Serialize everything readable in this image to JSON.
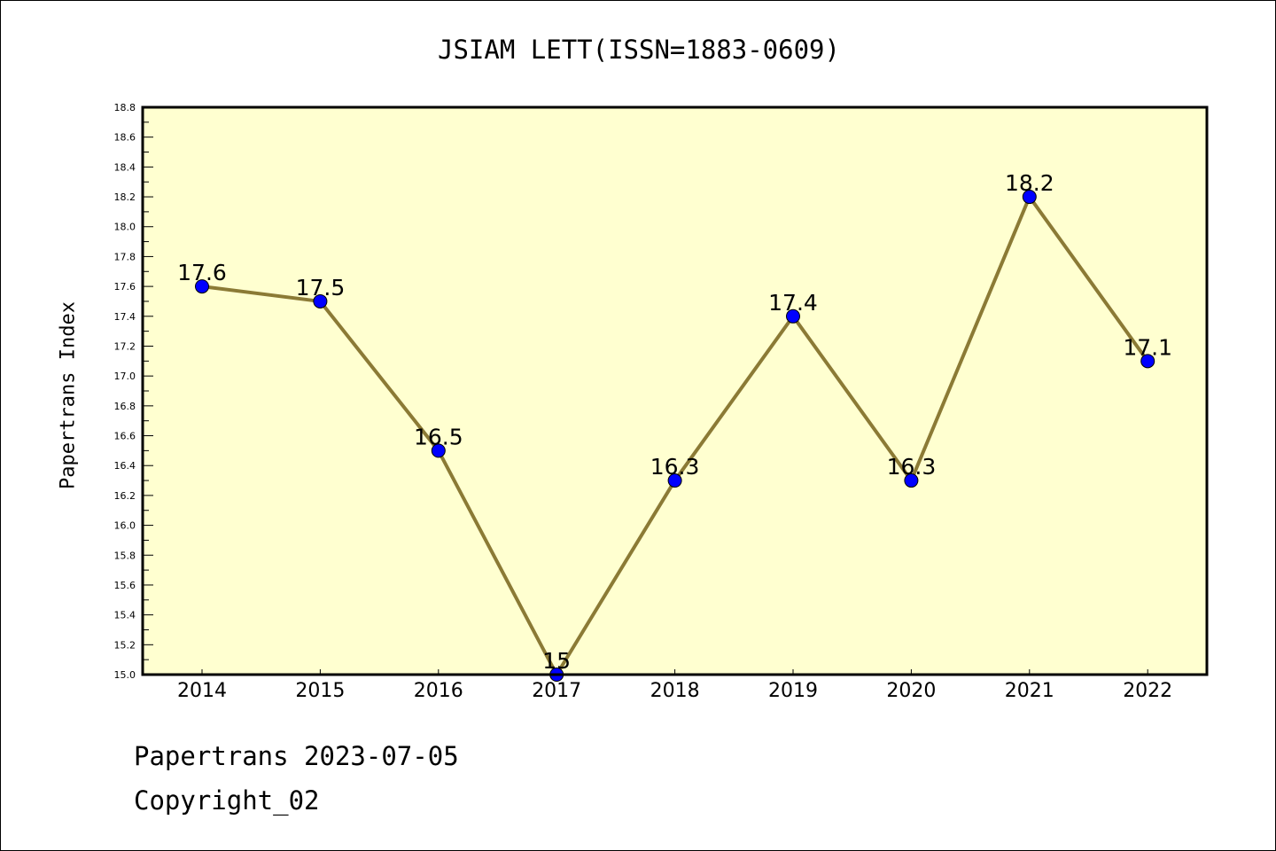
{
  "chart_data": {
    "type": "line",
    "title": "JSIAM LETT(ISSN=1883-0609)",
    "xlabel": "",
    "ylabel": "Papertrans Index",
    "categories": [
      "2014",
      "2015",
      "2016",
      "2017",
      "2018",
      "2019",
      "2020",
      "2021",
      "2022"
    ],
    "values": [
      17.6,
      17.5,
      16.5,
      15,
      16.3,
      17.4,
      16.3,
      18.2,
      17.1
    ],
    "data_labels": [
      "17.6",
      "17.5",
      "16.5",
      "15",
      "16.3",
      "17.4",
      "16.3",
      "18.2",
      "17.1"
    ],
    "ylim": [
      15.0,
      18.8
    ],
    "yticks": [
      "15.0",
      "15.2",
      "15.4",
      "15.6",
      "15.8",
      "16.0",
      "16.2",
      "16.4",
      "16.6",
      "16.8",
      "17.0",
      "17.2",
      "17.4",
      "17.6",
      "17.8",
      "18.0",
      "18.2",
      "18.4",
      "18.6",
      "18.8"
    ],
    "grid": false,
    "colors": {
      "line": "#8b7a35",
      "marker": "#0000ff",
      "background": "#ffffd0"
    }
  },
  "footer": {
    "line1": "Papertrans 2023-07-05",
    "line2": "Copyright_02"
  }
}
